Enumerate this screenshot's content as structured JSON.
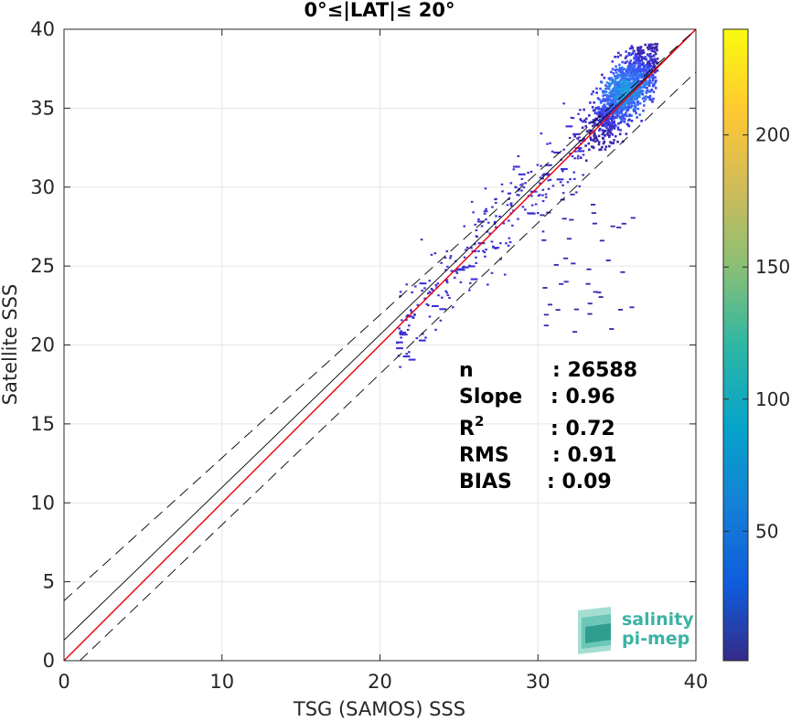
{
  "chart_data": {
    "type": "scatter",
    "title": "0°≤|LAT|≤ 20°",
    "xlabel": "TSG (SAMOS) SSS",
    "ylabel": "Satellite SSS",
    "xlim": [
      0,
      40
    ],
    "ylim": [
      0,
      40
    ],
    "xticks": [
      0,
      10,
      20,
      30,
      40
    ],
    "yticks": [
      0,
      5,
      10,
      15,
      20,
      25,
      30,
      35,
      40
    ],
    "grid": true,
    "density_histogram": true,
    "colorbar": {
      "min": 1,
      "max": 240,
      "ticks": [
        50,
        100,
        150,
        200
      ]
    },
    "lines": [
      {
        "kind": "one-to-one",
        "color": "#000000",
        "style": "solid",
        "points": [
          [
            0,
            1.3
          ],
          [
            40,
            40
          ]
        ]
      },
      {
        "kind": "regression",
        "color": "#e8000b",
        "style": "solid",
        "points": [
          [
            0,
            0
          ],
          [
            40,
            40
          ]
        ]
      },
      {
        "kind": "upper-bound",
        "color": "#000000",
        "style": "dashed",
        "points": [
          [
            0,
            3.8
          ],
          [
            40,
            40
          ]
        ]
      },
      {
        "kind": "lower-bound",
        "color": "#000000",
        "style": "dashed",
        "points": [
          [
            1,
            0
          ],
          [
            40,
            37.3
          ]
        ]
      }
    ],
    "density_core": {
      "x_range": [
        32,
        37.5
      ],
      "y_range": [
        31.5,
        39
      ],
      "peak_at": [
        35.5,
        36
      ]
    },
    "stats": [
      {
        "label": "n",
        "sup": "",
        "value": ": 26588"
      },
      {
        "label": "Slope",
        "sup": "",
        "value": ": 0.96"
      },
      {
        "label": "R",
        "sup": "2",
        "value": ": 0.72"
      },
      {
        "label": "RMS",
        "sup": "",
        "value": ": 0.91"
      },
      {
        "label": "BIAS",
        "sup": "",
        "value": ": 0.09"
      }
    ],
    "logo": {
      "line1": "salinity",
      "line2": "pi-mep"
    }
  }
}
